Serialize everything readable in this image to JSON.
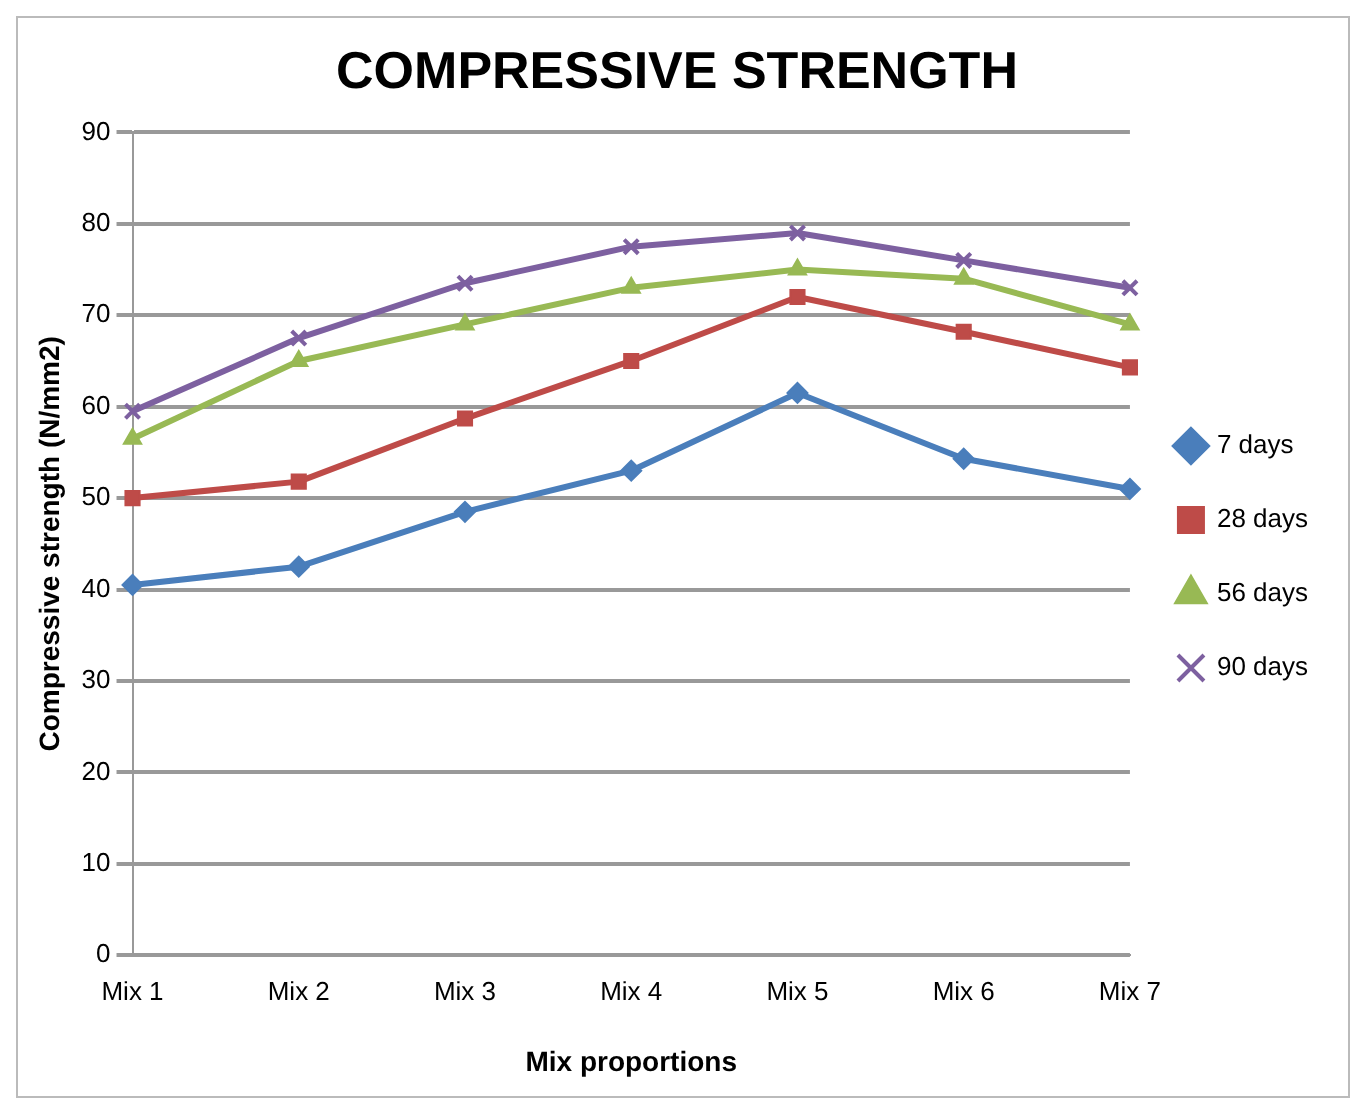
{
  "chart_data": {
    "type": "line",
    "title": "COMPRESSIVE STRENGTH",
    "xlabel": "Mix proportions",
    "ylabel": "Compressive strength (N/mm2)",
    "categories": [
      "Mix 1",
      "Mix 2",
      "Mix 3",
      "Mix 4",
      "Mix 5",
      "Mix 6",
      "Mix 7"
    ],
    "series": [
      {
        "name": "7 days",
        "color": "#4a7ebb",
        "marker": "diamond",
        "values": [
          40.5,
          42.5,
          48.5,
          53,
          61.5,
          54.3,
          51
        ]
      },
      {
        "name": "28 days",
        "color": "#be4b48",
        "marker": "square",
        "values": [
          50,
          51.8,
          58.7,
          65,
          72,
          68.2,
          64.3
        ]
      },
      {
        "name": "56 days",
        "color": "#98b954",
        "marker": "triangle",
        "values": [
          56.5,
          65,
          69,
          73,
          75,
          74,
          69
        ]
      },
      {
        "name": "90 days",
        "color": "#7d60a0",
        "marker": "cross",
        "values": [
          59.5,
          67.5,
          73.5,
          77.5,
          79,
          76,
          73
        ]
      }
    ],
    "ylim": [
      0,
      90
    ],
    "yticks": [
      0,
      10,
      20,
      30,
      40,
      50,
      60,
      70,
      80,
      90
    ],
    "grid": "y",
    "legend": "right"
  }
}
